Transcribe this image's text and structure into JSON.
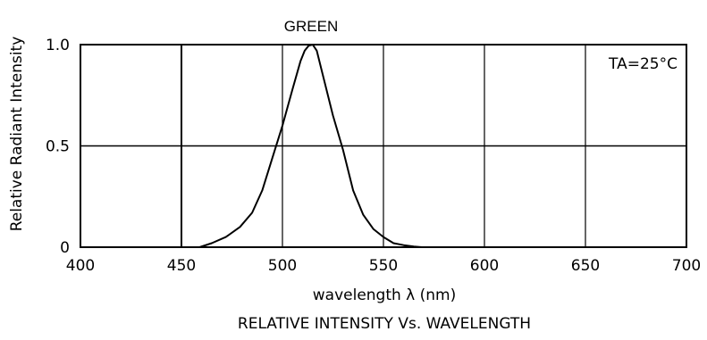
{
  "chart_data": {
    "type": "line",
    "title": "GREEN",
    "caption": "RELATIVE INTENSITY Vs. WAVELENGTH",
    "xlabel": "wavelength λ (nm)",
    "ylabel": "Relative Radiant Intensity",
    "annotation": "TA=25°C",
    "xlim": [
      400,
      700
    ],
    "ylim": [
      0,
      1.0
    ],
    "x_ticks": [
      400,
      450,
      500,
      550,
      600,
      650,
      700
    ],
    "x_tick_labels": [
      "400",
      "450",
      "500",
      "550",
      "600",
      "650",
      "700"
    ],
    "y_ticks": [
      0,
      0.5,
      1.0
    ],
    "y_tick_labels": [
      "0",
      "0.5",
      "1.0"
    ],
    "grid": true,
    "series": [
      {
        "x": [
          459,
          465,
          472,
          479,
          485,
          490,
          495,
          500,
          505,
          509,
          511,
          513,
          515,
          517,
          520,
          525,
          530,
          535,
          540,
          545,
          550,
          555,
          560,
          565,
          569
        ],
        "y": [
          0.0,
          0.02,
          0.05,
          0.1,
          0.17,
          0.28,
          0.44,
          0.6,
          0.78,
          0.92,
          0.97,
          0.995,
          1.0,
          0.97,
          0.85,
          0.65,
          0.48,
          0.28,
          0.16,
          0.09,
          0.05,
          0.02,
          0.01,
          0.003,
          0.0
        ]
      }
    ]
  }
}
